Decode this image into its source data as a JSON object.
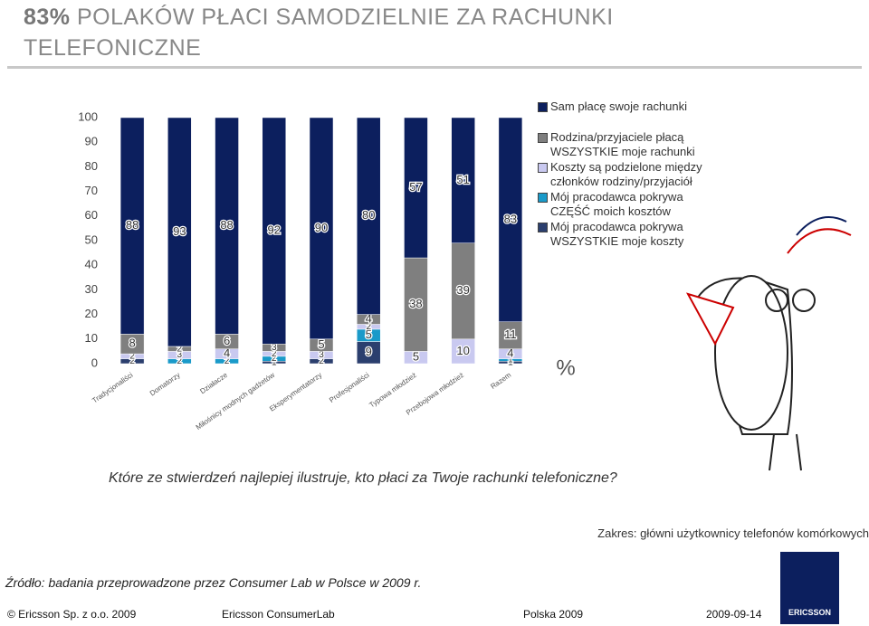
{
  "header": {
    "title_number": "83%",
    "title_text": "POLAKÓW PŁACI SAMODZIELNIE ZA RACHUNKI TELEFONICZNE"
  },
  "chart_data": {
    "type": "stacked-bar",
    "categories": [
      "Tradycjonaliści",
      "Domatorzy",
      "Działacze",
      "Miłośnicy modnych gadżetów",
      "Eksperymentatorzy",
      "Profesjonaliści",
      "Typowa młodzież",
      "Przebojowa młodzież",
      "Razem"
    ],
    "series": [
      {
        "name": "Mój pracodawca pokrywa WSZYSTKIE moje koszty",
        "color": "#2b3f6e",
        "values": [
          2,
          0,
          0,
          1,
          2,
          9,
          0,
          0,
          1
        ]
      },
      {
        "name": "Mój pracodawca pokrywa CZĘŚĆ moich kosztów",
        "color": "#1a9ac9",
        "values": [
          0,
          2,
          2,
          2,
          0,
          5,
          0,
          0,
          1
        ]
      },
      {
        "name": "Koszty są podzielone między członków rodziny/przyjaciół",
        "color": "#c9c9f0",
        "values": [
          2,
          3,
          4,
          2,
          3,
          2,
          5,
          10,
          4
        ]
      },
      {
        "name": "Rodzina/przyjaciele płacą WSZYSTKIE moje rachunki",
        "color": "#7f7f7f",
        "values": [
          8,
          2,
          6,
          3,
          5,
          4,
          38,
          39,
          11
        ]
      },
      {
        "name": "Sam płacę swoje rachunki",
        "color": "#0c1f5e",
        "values": [
          88,
          93,
          88,
          92,
          90,
          80,
          57,
          51,
          83
        ]
      }
    ],
    "ylim": [
      0,
      100
    ],
    "yticks": [
      0,
      10,
      20,
      30,
      40,
      50,
      60,
      70,
      80,
      90,
      100
    ],
    "unit_label": "%"
  },
  "question": "Które ze stwierdzeń najlepiej ilustruje, kto płaci za Twoje rachunki telefoniczne?",
  "scope": "Zakres: główni użytkownicy telefonów komórkowych",
  "source": "Źródło: badania przeprowadzone przez Consumer Lab w Polsce w 2009 r.",
  "logo": "ERICSSON",
  "footer": [
    "© Ericsson Sp. z o.o. 2009",
    "Ericsson ConsumerLab",
    "Polska 2009",
    "2009-09-14"
  ]
}
